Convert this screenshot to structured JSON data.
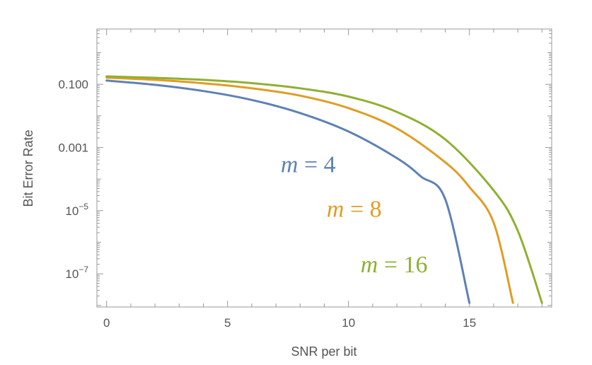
{
  "chart_data": {
    "type": "line",
    "title": "",
    "xlabel": "SNR per bit",
    "ylabel": "Bit Error Rate",
    "xlim": [
      -0.4,
      18.4
    ],
    "ylim_log10": [
      -8.05,
      0.75
    ],
    "y_scale": "log",
    "grid": false,
    "x_ticks": [
      {
        "value": 0,
        "label": "0"
      },
      {
        "value": 5,
        "label": "5"
      },
      {
        "value": 10,
        "label": "10"
      },
      {
        "value": 15,
        "label": "15"
      }
    ],
    "y_ticks": [
      {
        "log10": -1,
        "label": "0.100",
        "sup": ""
      },
      {
        "log10": -3,
        "label": "0.001",
        "sup": ""
      },
      {
        "log10": -5,
        "label": "10",
        "sup": "−5"
      },
      {
        "log10": -7,
        "label": "10",
        "sup": "−7"
      }
    ],
    "series": [
      {
        "name": "m = 4",
        "var": "m",
        "rest": " = 4",
        "color": "#5e81b5",
        "points": [
          [
            0,
            0.131
          ],
          [
            2,
            0.096
          ],
          [
            4,
            0.0612
          ],
          [
            6,
            0.032
          ],
          [
            8,
            0.0123
          ],
          [
            10,
            0.0032
          ],
          [
            12,
            0.00046
          ],
          [
            13,
            0.00012
          ],
          [
            14,
            2.3e-05
          ],
          [
            15,
            1.2e-08
          ]
        ]
      },
      {
        "name": "m = 8",
        "var": "m",
        "rest": " = 8",
        "color": "#e19c24",
        "points": [
          [
            0,
            0.162
          ],
          [
            2,
            0.138
          ],
          [
            4,
            0.108
          ],
          [
            6,
            0.0749
          ],
          [
            8,
            0.0437
          ],
          [
            10,
            0.0176
          ],
          [
            12,
            0.004
          ],
          [
            14,
            0.00034
          ],
          [
            15,
            5.6e-05
          ],
          [
            16,
            4.2e-06
          ],
          [
            16.8,
            1.2e-08
          ]
        ]
      },
      {
        "name": "m = 16",
        "var": "m",
        "rest": " = 16",
        "color": "#8fb032",
        "points": [
          [
            0,
            0.178
          ],
          [
            2,
            0.16
          ],
          [
            4,
            0.138
          ],
          [
            6,
            0.109
          ],
          [
            8,
            0.0749
          ],
          [
            10,
            0.0408
          ],
          [
            12,
            0.0133
          ],
          [
            14,
            0.0018
          ],
          [
            16,
            4.4e-05
          ],
          [
            17,
            2.3e-06
          ],
          [
            18,
            1.2e-08
          ]
        ]
      }
    ],
    "annotations": [
      {
        "series": 0,
        "at": [
          7.2,
          -3.78
        ]
      },
      {
        "series": 1,
        "at": [
          9.1,
          -5.2
        ]
      },
      {
        "series": 2,
        "at": [
          10.5,
          -6.95
        ]
      }
    ]
  }
}
